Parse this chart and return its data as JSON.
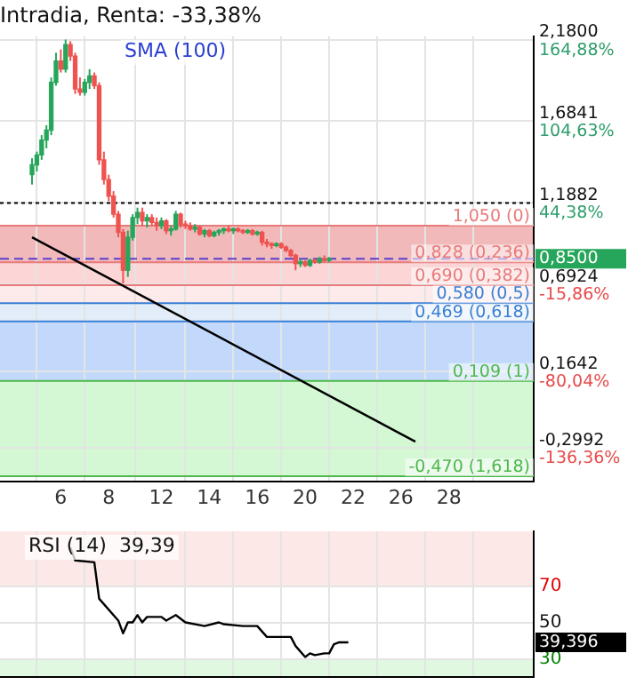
{
  "chart_data": [
    {
      "type": "candlestick",
      "title": "Intradia, Renta: -33,38%",
      "annotations": [
        "SMA (100)",
        "0,8500"
      ],
      "categories": [
        null,
        null,
        null,
        null,
        null,
        null,
        "6",
        null,
        null,
        null,
        null,
        null,
        null,
        null,
        null,
        null,
        "8",
        null,
        null,
        null,
        null,
        null,
        null,
        null,
        null,
        null,
        null,
        "12",
        null,
        null,
        null,
        null,
        null,
        null,
        null,
        null,
        null,
        "14",
        null,
        null,
        null,
        null,
        null,
        null,
        null,
        null,
        null,
        "16",
        null,
        null,
        null,
        null,
        null,
        null,
        null,
        null,
        null,
        "20",
        null,
        null,
        null,
        null,
        null,
        null,
        null,
        null,
        null,
        "22",
        null,
        null,
        null,
        null,
        null,
        null,
        null,
        null,
        null,
        "26",
        null,
        null,
        null,
        null,
        null,
        null,
        null,
        null,
        null,
        "28",
        null,
        null,
        null,
        null,
        null,
        null,
        null,
        null,
        null,
        null,
        null
      ],
      "ohlc": [
        [
          1.36,
          1.46,
          1.3,
          1.42
        ],
        [
          1.42,
          1.5,
          1.38,
          1.48
        ],
        [
          1.48,
          1.6,
          1.45,
          1.57
        ],
        [
          1.57,
          1.66,
          1.52,
          1.63
        ],
        [
          1.63,
          1.95,
          1.6,
          1.92
        ],
        [
          1.92,
          2.1,
          1.9,
          2.05
        ],
        [
          2.05,
          2.12,
          1.98,
          2.0
        ],
        [
          2.0,
          2.18,
          1.98,
          2.15
        ],
        [
          2.15,
          2.17,
          2.05,
          2.08
        ],
        [
          2.08,
          2.1,
          1.85,
          1.88
        ],
        [
          1.88,
          1.95,
          1.84,
          1.86
        ],
        [
          1.86,
          1.94,
          1.84,
          1.92
        ],
        [
          1.92,
          2.0,
          1.88,
          1.96
        ],
        [
          1.96,
          1.98,
          1.88,
          1.9
        ],
        [
          1.9,
          1.92,
          1.42,
          1.45
        ],
        [
          1.45,
          1.5,
          1.3,
          1.33
        ],
        [
          1.33,
          1.36,
          1.2,
          1.23
        ],
        [
          1.23,
          1.26,
          1.1,
          1.12
        ],
        [
          1.12,
          1.14,
          0.98,
          1.01
        ],
        [
          1.01,
          1.03,
          0.7,
          0.78
        ],
        [
          0.78,
          1.02,
          0.74,
          0.98
        ],
        [
          0.98,
          1.12,
          0.96,
          1.1
        ],
        [
          1.1,
          1.16,
          1.06,
          1.13
        ],
        [
          1.13,
          1.16,
          1.05,
          1.08
        ],
        [
          1.08,
          1.12,
          1.04,
          1.1
        ],
        [
          1.1,
          1.12,
          1.05,
          1.07
        ],
        [
          1.07,
          1.1,
          1.02,
          1.05
        ],
        [
          1.05,
          1.1,
          1.03,
          1.08
        ],
        [
          1.08,
          1.09,
          1.0,
          1.02
        ],
        [
          1.02,
          1.05,
          0.99,
          1.03
        ],
        [
          1.03,
          1.14,
          1.02,
          1.12
        ],
        [
          1.12,
          1.13,
          1.04,
          1.06
        ],
        [
          1.06,
          1.08,
          1.03,
          1.05
        ],
        [
          1.05,
          1.07,
          1.02,
          1.03
        ],
        [
          1.03,
          1.06,
          1.01,
          1.04
        ],
        [
          1.04,
          1.05,
          0.99,
          1.0
        ],
        [
          1.0,
          1.03,
          0.98,
          1.02
        ],
        [
          1.02,
          1.03,
          0.98,
          0.99
        ],
        [
          0.99,
          1.02,
          0.98,
          1.01
        ],
        [
          1.01,
          1.03,
          0.99,
          1.02
        ],
        [
          1.02,
          1.04,
          1.0,
          1.03
        ],
        [
          1.03,
          1.05,
          1.01,
          1.02
        ],
        [
          1.02,
          1.04,
          1.0,
          1.03
        ],
        [
          1.03,
          1.04,
          1.01,
          1.02
        ],
        [
          1.02,
          1.03,
          1.0,
          1.01
        ],
        [
          1.01,
          1.03,
          1.0,
          1.02
        ],
        [
          1.02,
          1.03,
          0.99,
          1.0
        ],
        [
          1.0,
          1.02,
          0.99,
          1.01
        ],
        [
          1.01,
          1.02,
          0.93,
          0.95
        ],
        [
          0.95,
          0.97,
          0.92,
          0.94
        ],
        [
          0.94,
          0.95,
          0.91,
          0.93
        ],
        [
          0.93,
          0.95,
          0.92,
          0.94
        ],
        [
          0.94,
          0.95,
          0.91,
          0.92
        ],
        [
          0.92,
          0.93,
          0.89,
          0.9
        ],
        [
          0.9,
          0.91,
          0.86,
          0.87
        ],
        [
          0.87,
          0.88,
          0.78,
          0.82
        ],
        [
          0.82,
          0.85,
          0.8,
          0.83
        ],
        [
          0.83,
          0.84,
          0.8,
          0.81
        ],
        [
          0.81,
          0.85,
          0.8,
          0.84
        ],
        [
          0.84,
          0.85,
          0.82,
          0.83
        ],
        [
          0.83,
          0.86,
          0.82,
          0.85
        ],
        [
          0.85,
          0.87,
          0.83,
          0.84
        ],
        [
          0.84,
          0.86,
          0.83,
          0.85
        ],
        null,
        null,
        null,
        null,
        null,
        null,
        null,
        null,
        null,
        null,
        null,
        null,
        null,
        null,
        null,
        null,
        null,
        null,
        null,
        null,
        null,
        null,
        null,
        null,
        null,
        null,
        null,
        null,
        null,
        null,
        null,
        null,
        null,
        null,
        null,
        null
      ],
      "colors": [
        "#26a65b",
        "#26a65b",
        "#26a65b",
        "#26a65b",
        "#26a65b",
        "#26a65b",
        "#ef5350",
        "#26a65b",
        "#ef5350",
        "#ef5350",
        "#ef5350",
        "#26a65b",
        "#26a65b",
        "#ef5350",
        "#ef5350",
        "#ef5350",
        "#ef5350",
        "#ef5350",
        "#ef5350",
        "#ef5350",
        "#26a65b",
        "#26a65b",
        "#26a65b",
        "#ef5350",
        "#26a65b",
        "#ef5350",
        "#ef5350",
        "#26a65b",
        "#ef5350",
        "#26a65b",
        "#26a65b",
        "#ef5350",
        "#ef5350",
        "#ef5350",
        "#26a65b",
        "#ef5350",
        "#26a65b",
        "#ef5350",
        "#26a65b",
        "#26a65b",
        "#26a65b",
        "#ef5350",
        "#26a65b",
        "#ef5350",
        "#ef5350",
        "#26a65b",
        "#ef5350",
        "#26a65b",
        "#ef5350",
        "#ef5350",
        "#ef5350",
        "#26a65b",
        "#ef5350",
        "#ef5350",
        "#ef5350",
        "#ef5350",
        "#26a65b",
        "#ef5350",
        "#26a65b",
        "#ef5350",
        "#26a65b",
        "#ef5350",
        "#26a65b",
        null,
        null,
        null,
        null,
        null,
        null,
        null,
        null,
        null,
        null,
        null,
        null,
        null,
        null,
        null,
        null,
        null,
        null,
        null,
        null,
        null,
        null,
        null,
        null,
        null,
        null,
        null,
        null,
        null,
        null,
        null,
        null,
        null,
        null,
        null,
        null
      ],
      "series": [
        {
          "type": "line",
          "color": "#000000",
          "values": [
            0.98,
            null,
            null,
            null,
            null,
            null,
            null,
            null,
            null,
            null,
            null,
            null,
            null,
            null,
            null,
            null,
            null,
            null,
            null,
            null,
            null,
            null,
            null,
            null,
            null,
            null,
            null,
            null,
            null,
            null,
            null,
            null,
            null,
            null,
            null,
            null,
            null,
            null,
            null,
            null,
            null,
            null,
            null,
            null,
            null,
            null,
            null,
            null,
            null,
            null,
            null,
            null,
            null,
            null,
            null,
            null,
            null,
            null,
            null,
            null,
            null,
            null,
            null,
            null,
            null,
            null,
            null,
            null,
            null,
            null,
            null,
            null,
            null,
            null,
            null,
            null,
            null,
            null,
            null,
            null,
            -0.26,
            null,
            null,
            null,
            null,
            null,
            null,
            null,
            null,
            null,
            null,
            null,
            null,
            null,
            null,
            null,
            null,
            null,
            null
          ]
        }
      ],
      "ylim": [
        -0.5,
        2.2
      ],
      "yticks": [
        {
          "value": 2.18,
          "label": "2,1800"
        },
        {
          "value": 1.6841,
          "label": "1,6841"
        },
        {
          "value": 1.1882,
          "label": "1,1882"
        },
        {
          "value": 0.6924,
          "label": "0,6924"
        },
        {
          "value": 0.1642,
          "label": "0,1642"
        },
        {
          "value": -0.2992,
          "label": "-0,2992"
        }
      ],
      "y2lim": [
        -160.76,
        167.35
      ],
      "y2ticks": [
        {
          "value": 164.88,
          "label": "164,88%"
        },
        {
          "value": 104.63,
          "label": "104,63%"
        },
        {
          "value": 44.38,
          "label": "44,38%"
        },
        {
          "value": -15.86,
          "label": "-15,86%"
        },
        {
          "value": -80.04,
          "label": "-80,04%"
        },
        {
          "value": -136.36,
          "label": "-136,36%"
        }
      ],
      "bands": [
        {
          "axis": "y",
          "from": 0.828,
          "to": 1.05,
          "color": "#f1b9b9"
        },
        {
          "axis": "y",
          "from": 0.69,
          "to": 0.828,
          "color": "#fcd6d6"
        },
        {
          "axis": "y",
          "from": 0.58,
          "to": 0.69,
          "color": "#fdeaea"
        },
        {
          "axis": "y",
          "from": 0.469,
          "to": 0.58,
          "color": "#e3edf9"
        },
        {
          "axis": "y",
          "from": 0.109,
          "to": 0.469,
          "color": "#c2d9fb"
        },
        {
          "axis": "y",
          "from": -0.47,
          "to": 0.109,
          "color": "#d4f7d4"
        }
      ],
      "ref_lines": [
        {
          "axis": "y",
          "value": 1.1882,
          "color": "#000000",
          "line_style": "dotted"
        },
        {
          "axis": "y",
          "value": 0.85,
          "color": "#5a3fd0",
          "line_style": "dashed"
        },
        {
          "axis": "y",
          "value": 1.05,
          "label": "1,050 (0)",
          "color": "#e87a7a"
        },
        {
          "axis": "y",
          "value": 0.828,
          "label": "0,828 (0,236)",
          "color": "#e87a7a"
        },
        {
          "axis": "y",
          "value": 0.69,
          "label": "0,690 (0,382)",
          "color": "#e87a7a"
        },
        {
          "axis": "y",
          "value": 0.58,
          "label": "0,580 (0,5)",
          "color": "#3a7fd5"
        },
        {
          "axis": "y",
          "value": 0.469,
          "label": "0,469 (0,618)",
          "color": "#3a7fd5"
        },
        {
          "axis": "y",
          "value": 0.109,
          "label": "0,109 (1)",
          "color": "#4cb84c"
        },
        {
          "axis": "y",
          "value": -0.47,
          "label": "-0,470 (1,618)",
          "color": "#4cb84c"
        }
      ],
      "grid": true,
      "legend": false
    },
    {
      "type": "line",
      "annotations": [
        "RSI (14)  39,39",
        "39,396"
      ],
      "categories": [
        null,
        null,
        null,
        null,
        null,
        null,
        "6",
        null,
        null,
        null,
        null,
        null,
        null,
        null,
        null,
        null,
        "8",
        null,
        null,
        null,
        null,
        null,
        null,
        null,
        null,
        null,
        null,
        "12",
        null,
        null,
        null,
        null,
        null,
        null,
        null,
        null,
        null,
        "14",
        null,
        null,
        null,
        null,
        null,
        null,
        null,
        null,
        null,
        "16",
        null,
        null,
        null,
        null,
        null,
        null,
        null,
        null,
        null,
        "20",
        null,
        null,
        null,
        null,
        null,
        null,
        null,
        null,
        null,
        "22",
        null,
        null,
        null,
        null,
        null,
        null,
        null,
        null,
        null,
        "26",
        null,
        null,
        null,
        null,
        null,
        null,
        null,
        null,
        null,
        "28",
        null,
        null,
        null,
        null,
        null,
        null,
        null,
        null,
        null,
        null,
        null
      ],
      "series": [
        {
          "color": "#000000",
          "values": [
            null,
            null,
            null,
            null,
            null,
            null,
            null,
            null,
            91,
            84,
            null,
            null,
            null,
            83,
            63,
            null,
            null,
            null,
            51,
            44,
            50,
            50,
            54,
            50,
            53,
            null,
            null,
            53,
            51,
            null,
            54,
            null,
            50,
            null,
            null,
            null,
            48,
            null,
            null,
            50,
            49,
            null,
            null,
            null,
            48,
            null,
            null,
            48,
            null,
            42,
            null,
            null,
            null,
            null,
            42,
            37,
            null,
            31,
            33,
            32,
            null,
            33,
            33,
            38,
            39,
            null,
            39,
            null,
            null,
            null,
            null,
            null,
            null,
            null,
            null,
            null,
            null,
            null,
            null,
            null,
            null,
            null,
            null,
            null,
            null,
            null,
            null,
            null,
            null,
            null,
            null,
            null,
            null,
            null,
            null,
            null,
            null,
            null,
            null
          ]
        }
      ],
      "ylim": [
        20,
        100
      ],
      "yticks": [
        70,
        50,
        30
      ],
      "bands": [
        {
          "axis": "y",
          "from": 70,
          "to": 100,
          "color": "#fde8e8"
        },
        {
          "axis": "y",
          "from": 20,
          "to": 30,
          "color": "#e0f8e0"
        }
      ],
      "grid": true,
      "legend": false,
      "tick_labels": "y",
      "marker": "none"
    }
  ]
}
